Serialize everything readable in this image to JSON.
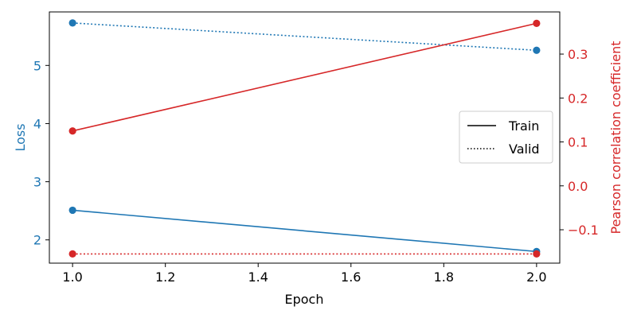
{
  "chart_data": {
    "type": "line",
    "xlabel": "Epoch",
    "x_ticks": [
      1.0,
      1.2,
      1.4,
      1.6,
      1.8,
      2.0
    ],
    "x_tick_labels": [
      "1.0",
      "1.2",
      "1.4",
      "1.6",
      "1.8",
      "2.0"
    ],
    "xlim": [
      0.95,
      2.05
    ],
    "left_axis": {
      "label": "Loss",
      "color": "#1f77b4",
      "ticks": [
        2,
        3,
        4,
        5
      ],
      "tick_labels": [
        "2",
        "3",
        "4",
        "5"
      ],
      "ylim": [
        1.6,
        5.92
      ]
    },
    "right_axis": {
      "label": "Pearson correlation coefficient",
      "color": "#d62728",
      "ticks": [
        -0.1,
        0.0,
        0.1,
        0.2,
        0.3
      ],
      "tick_labels": [
        "−0.1",
        "0.0",
        "0.1",
        "0.2",
        "0.3"
      ],
      "ylim": [
        -0.176,
        0.396
      ]
    },
    "series": [
      {
        "axis": "left",
        "style": "solid",
        "color": "#1f77b4",
        "x": [
          1.0,
          2.0
        ],
        "values": [
          2.51,
          1.8
        ]
      },
      {
        "axis": "left",
        "style": "dotted",
        "color": "#1f77b4",
        "x": [
          1.0,
          2.0
        ],
        "values": [
          5.73,
          5.26
        ]
      },
      {
        "axis": "right",
        "style": "solid",
        "color": "#d62728",
        "x": [
          1.0,
          2.0
        ],
        "values": [
          0.125,
          0.37
        ]
      },
      {
        "axis": "right",
        "style": "dotted",
        "color": "#d62728",
        "x": [
          1.0,
          2.0
        ],
        "values": [
          -0.155,
          -0.155
        ]
      }
    ],
    "legend": {
      "placement": "center-right",
      "entries": [
        {
          "label": "Train",
          "style": "solid"
        },
        {
          "label": "Valid",
          "style": "dotted"
        }
      ]
    },
    "grid": false
  }
}
